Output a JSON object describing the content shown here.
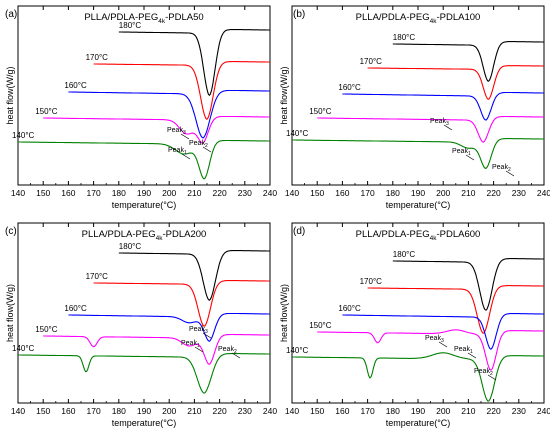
{
  "chart_data": [
    {
      "panel_letter": "(a)",
      "title_base": "PLLA/PDLA-PEG",
      "title_sub": "4k",
      "title_suffix": "-PDLA50",
      "type": "line",
      "xlabel": "temperature(°C)",
      "ylabel": "heat flow(W/g)",
      "xlim": [
        140,
        240
      ],
      "xticks": [
        140,
        150,
        160,
        170,
        180,
        190,
        200,
        210,
        220,
        230,
        240
      ],
      "series": [
        {
          "name": "180°C",
          "color": "#000000",
          "start": 180,
          "base": 208,
          "dip": [
            {
              "c": 216,
              "w": 3.2,
              "d": 62
            }
          ],
          "drift": -2
        },
        {
          "name": "170°C",
          "color": "#ff0000",
          "start": 170,
          "base": 208,
          "dip": [
            {
              "c": 215,
              "w": 3.5,
              "d": 54
            }
          ],
          "drift": -2
        },
        {
          "name": "160°C",
          "color": "#0000ff",
          "start": 160,
          "base": 208,
          "dip": [
            {
              "c": 213.5,
              "w": 4,
              "d": 44
            }
          ],
          "drift": -3
        },
        {
          "name": "150°C",
          "color": "#ff00ff",
          "start": 150,
          "base": 208,
          "dip": [
            {
              "c": 207,
              "w": 4,
              "d": 14
            },
            {
              "c": 213.5,
              "w": 3,
              "d": 22
            }
          ],
          "drift": -3
        },
        {
          "name": "140°C",
          "color": "#008000",
          "start": 140,
          "base": 208,
          "dip": [
            {
              "c": 206,
              "w": 5,
              "d": 10
            },
            {
              "c": 214,
              "w": 3,
              "d": 34
            }
          ],
          "drift": -3
        }
      ],
      "annotations": [
        {
          "text": "Peak",
          "sub": "3"
        },
        {
          "text": "Peak",
          "sub": "1"
        },
        {
          "text": "Peak",
          "sub": "2"
        }
      ]
    },
    {
      "panel_letter": "(b)",
      "title_base": "PLLA/PDLA-PEG",
      "title_sub": "4k",
      "title_suffix": "-PDLA100",
      "type": "line",
      "xlabel": "temperature(°C)",
      "ylabel": "heat flow(W/g)",
      "xlim": [
        140,
        240
      ],
      "xticks": [
        140,
        150,
        160,
        170,
        180,
        190,
        200,
        210,
        220,
        230,
        240
      ],
      "series": [
        {
          "name": "180°C",
          "color": "#000000",
          "start": 180,
          "dip": [
            {
              "c": 218,
              "w": 3,
              "d": 36
            }
          ],
          "drift": -2
        },
        {
          "name": "170°C",
          "color": "#ff0000",
          "start": 170,
          "dip": [
            {
              "c": 218,
              "w": 3,
              "d": 30
            }
          ],
          "drift": -2
        },
        {
          "name": "160°C",
          "color": "#0000ff",
          "start": 160,
          "dip": [
            {
              "c": 217,
              "w": 3,
              "d": 24
            }
          ],
          "drift": -3
        },
        {
          "name": "150°C",
          "color": "#ff00ff",
          "start": 150,
          "dip": [
            {
              "c": 216,
              "w": 3,
              "d": 22
            }
          ],
          "drift": -3
        },
        {
          "name": "140°C",
          "color": "#008000",
          "start": 140,
          "dip": [
            {
              "c": 210,
              "w": 4,
              "d": 6
            },
            {
              "c": 217,
              "w": 3,
              "d": 26
            }
          ],
          "drift": -3
        }
      ],
      "annotations": [
        {
          "text": "Peak",
          "sub": "3"
        },
        {
          "text": "Peak",
          "sub": "1"
        },
        {
          "text": "Peak",
          "sub": "2"
        }
      ]
    },
    {
      "panel_letter": "(c)",
      "title_base": "PLLA/PDLA-PEG",
      "title_sub": "4k",
      "title_suffix": "-PDLA200",
      "type": "line",
      "xlabel": "temperature(°C)",
      "ylabel": "heat flow(W/g)",
      "xlim": [
        140,
        240
      ],
      "xticks": [
        140,
        150,
        160,
        170,
        180,
        190,
        200,
        210,
        220,
        230,
        240
      ],
      "series": [
        {
          "name": "180°C",
          "color": "#000000",
          "start": 180,
          "dip": [
            {
              "c": 216,
              "w": 3.5,
              "d": 46
            }
          ],
          "drift": -2
        },
        {
          "name": "170°C",
          "color": "#ff0000",
          "start": 170,
          "dip": [
            {
              "c": 214,
              "w": 3.5,
              "d": 42
            }
          ],
          "drift": -2
        },
        {
          "name": "160°C",
          "color": "#0000ff",
          "start": 160,
          "dip": [
            {
              "c": 208,
              "w": 4,
              "d": 6
            },
            {
              "c": 216,
              "w": 3,
              "d": 24
            }
          ],
          "drift": -3
        },
        {
          "name": "150°C",
          "color": "#ff00ff",
          "start": 150,
          "dip": [
            {
              "c": 170,
              "w": 2,
              "d": 10
            },
            {
              "c": 208,
              "w": 4,
              "d": 8
            },
            {
              "c": 216,
              "w": 3,
              "d": 26
            }
          ],
          "drift": -3
        },
        {
          "name": "140°C",
          "color": "#008000",
          "start": 140,
          "dip": [
            {
              "c": 167,
              "w": 1.6,
              "d": 16
            },
            {
              "c": 214,
              "w": 4,
              "d": 36
            }
          ],
          "drift": -3
        }
      ],
      "annotations": [
        {
          "text": "Peak",
          "sub": "3"
        },
        {
          "text": "Peak",
          "sub": "1"
        },
        {
          "text": "Peak",
          "sub": "2"
        }
      ]
    },
    {
      "panel_letter": "(d)",
      "title_base": "PLLA/PDLA-PEG",
      "title_sub": "4k",
      "title_suffix": "-PDLA600",
      "type": "line",
      "xlabel": "temperature(°C)",
      "ylabel": "heat flow(W/g)",
      "xlim": [
        140,
        240
      ],
      "xticks": [
        140,
        150,
        160,
        170,
        180,
        190,
        200,
        210,
        220,
        230,
        240
      ],
      "series": [
        {
          "name": "180°C",
          "color": "#000000",
          "start": 180,
          "dip": [
            {
              "c": 217,
              "w": 3.5,
              "d": 48
            }
          ],
          "drift": -2
        },
        {
          "name": "170°C",
          "color": "#ff0000",
          "start": 170,
          "dip": [
            {
              "c": 216,
              "w": 3.5,
              "d": 44
            }
          ],
          "drift": -2
        },
        {
          "name": "160°C",
          "color": "#0000ff",
          "start": 160,
          "dip": [
            {
              "c": 219,
              "w": 3,
              "d": 32
            }
          ],
          "drift": -3
        },
        {
          "name": "150°C",
          "color": "#ff00ff",
          "start": 150,
          "dip": [
            {
              "c": 174,
              "w": 1.8,
              "d": 10
            },
            {
              "c": 205,
              "w": 5,
              "d": -4
            },
            {
              "c": 219,
              "w": 3,
              "d": 36
            }
          ],
          "drift": -3
        },
        {
          "name": "140°C",
          "color": "#008000",
          "start": 140,
          "dip": [
            {
              "c": 171,
              "w": 1.6,
              "d": 20
            },
            {
              "c": 200,
              "w": 6,
              "d": -6
            },
            {
              "c": 218,
              "w": 3.5,
              "d": 42
            }
          ],
          "drift": -3
        }
      ],
      "annotations": [
        {
          "text": "Peak",
          "sub": "3"
        },
        {
          "text": "Peak",
          "sub": "1"
        },
        {
          "text": "Peak",
          "sub": "2"
        }
      ]
    }
  ]
}
